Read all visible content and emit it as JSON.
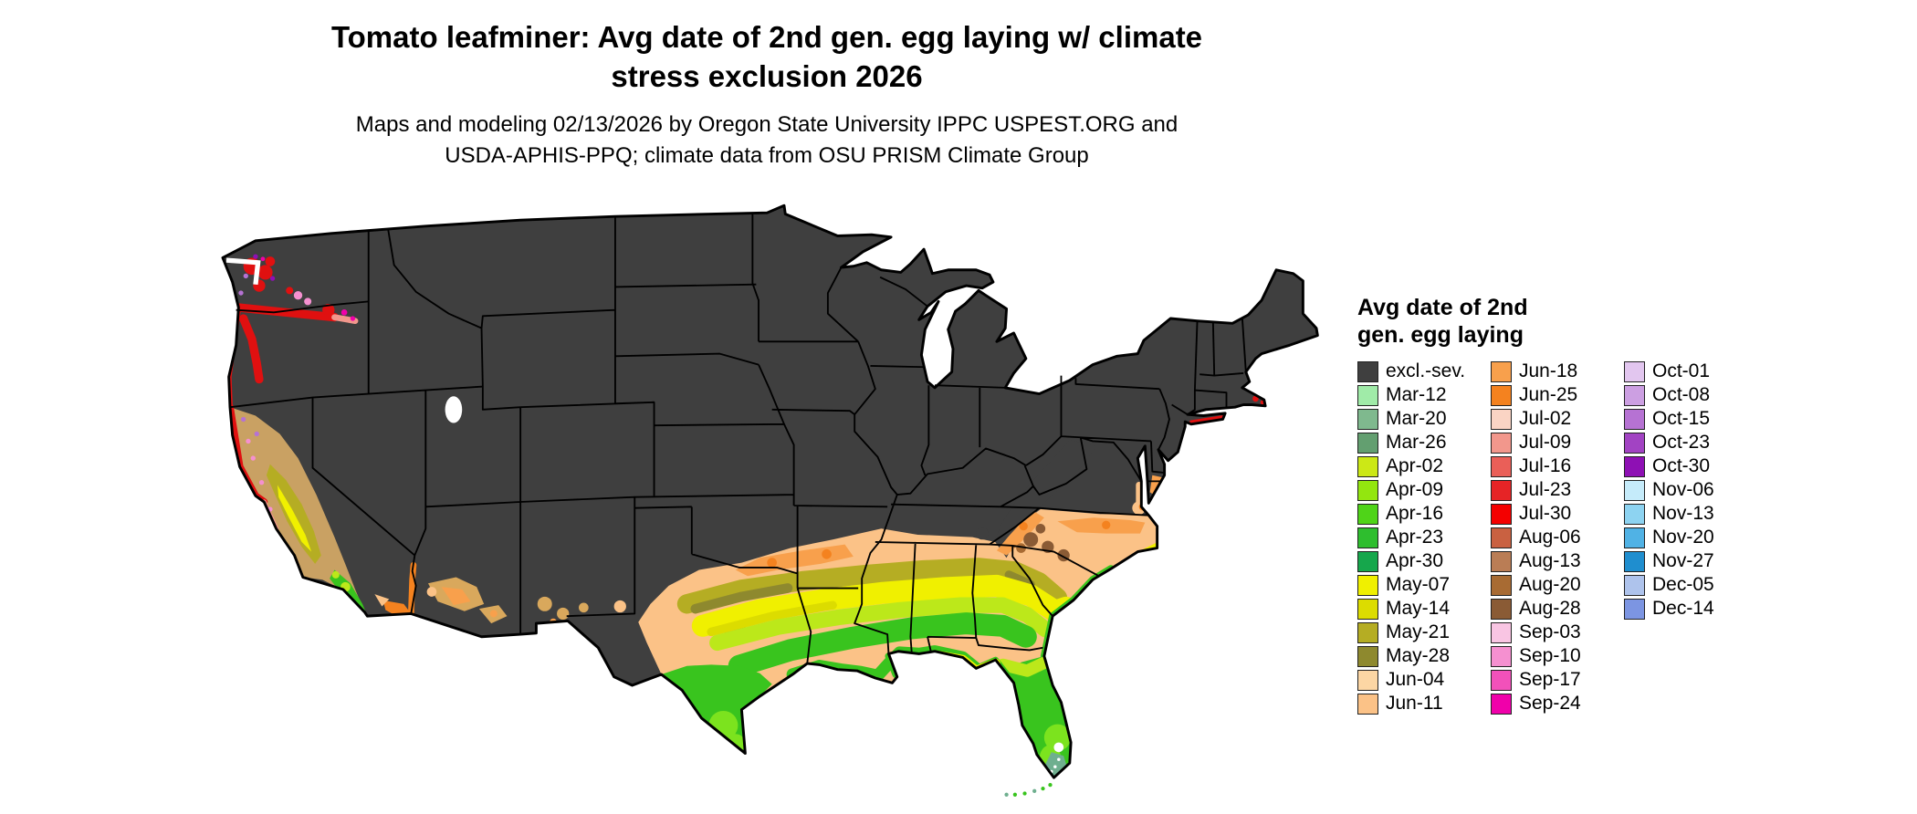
{
  "title": "Tomato leafminer: Avg date of 2nd gen. egg laying w/ climate\nstress exclusion 2026",
  "subtitle": "Maps and modeling 02/13/2026 by Oregon State University IPPC USPEST.ORG and\nUSDA-APHIS-PPQ; climate data from OSU PRISM Climate Group",
  "map": {
    "kind": "choropleth-us-map",
    "excluded_fill": "#3F3F3F",
    "state_border_color": "#000000",
    "background": "#FFFFFF"
  },
  "legend": {
    "title": "Avg date of 2nd\ngen. egg laying",
    "columns": [
      {
        "entries": [
          {
            "label": "excl.-sev.",
            "color": "#3F3F3F"
          },
          {
            "label": "Mar-12",
            "color": "#A0EBA8"
          },
          {
            "label": "Mar-20",
            "color": "#7FB98E"
          },
          {
            "label": "Mar-26",
            "color": "#639F70"
          },
          {
            "label": "Apr-02",
            "color": "#CCE816"
          },
          {
            "label": "Apr-09",
            "color": "#93E60F"
          },
          {
            "label": "Apr-16",
            "color": "#4FD418"
          },
          {
            "label": "Apr-23",
            "color": "#2EBE2E"
          },
          {
            "label": "Apr-30",
            "color": "#16A74C"
          },
          {
            "label": "May-07",
            "color": "#F0F000"
          },
          {
            "label": "May-14",
            "color": "#DCDC00"
          },
          {
            "label": "May-21",
            "color": "#B5AD23"
          },
          {
            "label": "May-28",
            "color": "#8E892E"
          },
          {
            "label": "Jun-04",
            "color": "#FCD6A4"
          },
          {
            "label": "Jun-11",
            "color": "#FBC287"
          }
        ]
      },
      {
        "entries": [
          {
            "label": "Jun-18",
            "color": "#F8A04C"
          },
          {
            "label": "Jun-25",
            "color": "#F4821F"
          },
          {
            "label": "Jul-02",
            "color": "#FAD4C4"
          },
          {
            "label": "Jul-09",
            "color": "#F2978C"
          },
          {
            "label": "Jul-16",
            "color": "#EA5F58"
          },
          {
            "label": "Jul-23",
            "color": "#E62426"
          },
          {
            "label": "Jul-30",
            "color": "#F40000"
          },
          {
            "label": "Aug-06",
            "color": "#C96141"
          },
          {
            "label": "Aug-13",
            "color": "#BA7D55"
          },
          {
            "label": "Aug-20",
            "color": "#A86B33"
          },
          {
            "label": "Aug-28",
            "color": "#8A5B35"
          },
          {
            "label": "Sep-03",
            "color": "#F9C5E3"
          },
          {
            "label": "Sep-10",
            "color": "#F590D0"
          },
          {
            "label": "Sep-17",
            "color": "#F251BA"
          },
          {
            "label": "Sep-24",
            "color": "#F000AA"
          }
        ]
      },
      {
        "entries": [
          {
            "label": "Oct-01",
            "color": "#E2C6EF"
          },
          {
            "label": "Oct-08",
            "color": "#CC9FE2"
          },
          {
            "label": "Oct-15",
            "color": "#B672D3"
          },
          {
            "label": "Oct-23",
            "color": "#A243C3"
          },
          {
            "label": "Oct-30",
            "color": "#8E10B4"
          },
          {
            "label": "Nov-06",
            "color": "#C5EBFA"
          },
          {
            "label": "Nov-13",
            "color": "#8DD3F1"
          },
          {
            "label": "Nov-20",
            "color": "#50B2E5"
          },
          {
            "label": "Nov-27",
            "color": "#1F8ECF"
          },
          {
            "label": "Dec-05",
            "color": "#AEC3EC"
          },
          {
            "label": "Dec-14",
            "color": "#7C95E2"
          }
        ]
      }
    ]
  }
}
